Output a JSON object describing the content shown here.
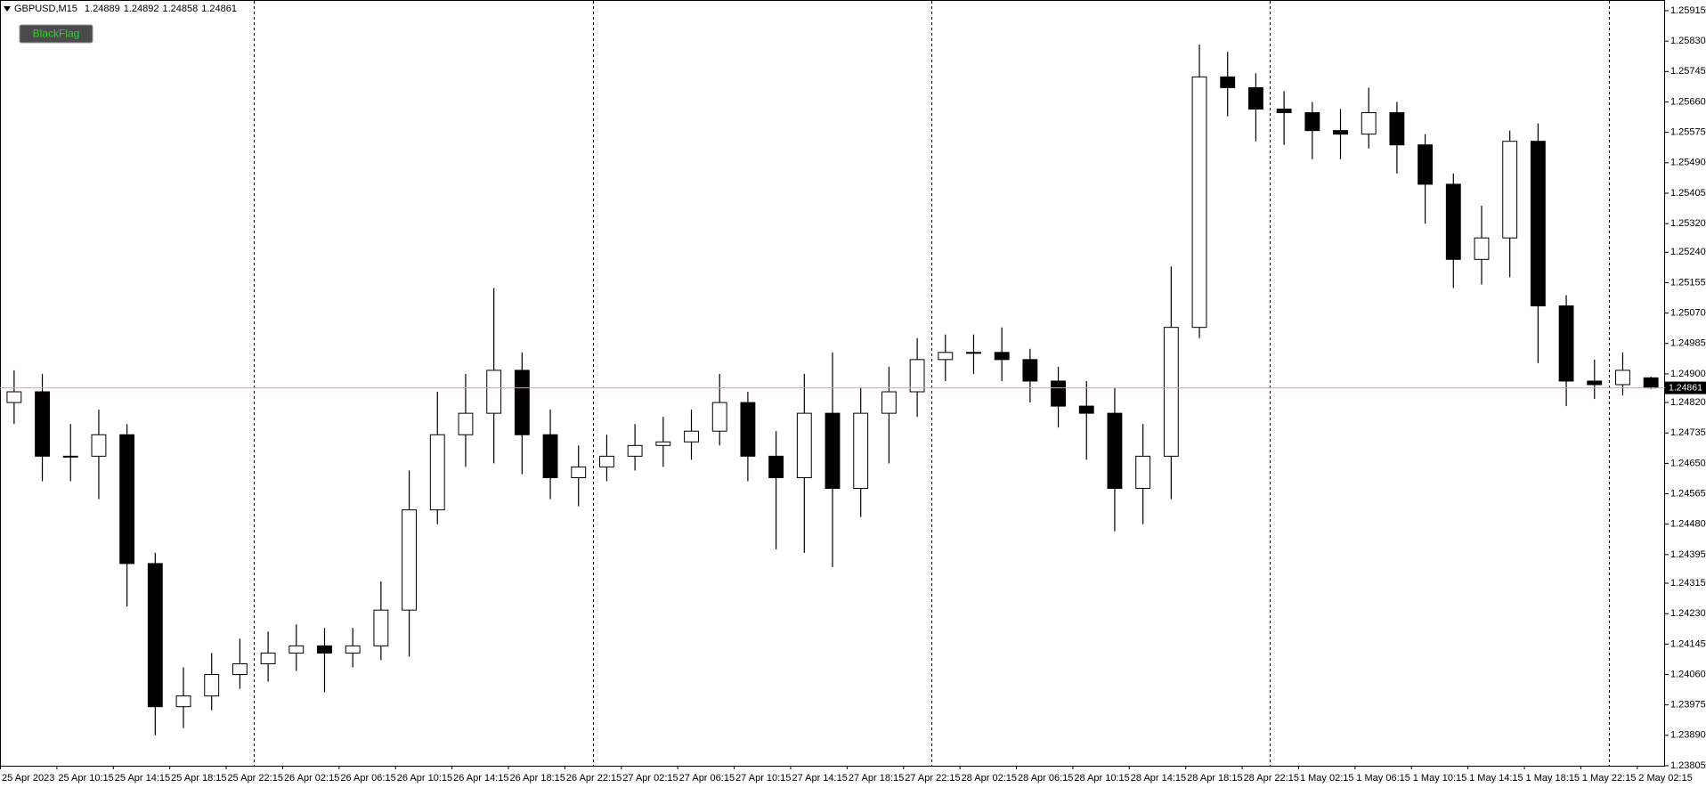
{
  "chart_data": {
    "type": "candlestick",
    "title": "GBPUSD,M15",
    "button": "BlackFlag",
    "categories": [
      "25 Apr 2023",
      null,
      "25 Apr 10:15",
      null,
      "25 Apr 14:15",
      null,
      "25 Apr 18:15",
      null,
      "25 Apr 22:15",
      null,
      "26 Apr 02:15",
      null,
      "26 Apr 06:15",
      null,
      "26 Apr 10:15",
      null,
      "26 Apr 14:15",
      null,
      "26 Apr 18:15",
      null,
      "26 Apr 22:15",
      null,
      "27 Apr 02:15",
      null,
      "27 Apr 06:15",
      null,
      "27 Apr 10:15",
      null,
      "27 Apr 14:15",
      null,
      "27 Apr 18:15",
      null,
      "27 Apr 22:15",
      null,
      "28 Apr 02:15",
      null,
      "28 Apr 06:15",
      null,
      "28 Apr 10:15",
      null,
      "28 Apr 14:15",
      null,
      "28 Apr 18:15",
      null,
      "28 Apr 22:15",
      null,
      "1 May 02:15",
      null,
      "1 May 06:15",
      null,
      "1 May 10:15",
      null,
      "1 May 14:15",
      null,
      "1 May 18:15",
      null,
      "1 May 22:15",
      null,
      "2 May 02:15"
    ],
    "open": [
      1.2482,
      1.2485,
      1.2467,
      1.2467,
      1.2473,
      1.2437,
      1.2397,
      1.24,
      1.2406,
      1.2409,
      1.2412,
      1.2414,
      1.2412,
      1.2414,
      1.2424,
      1.2452,
      1.2473,
      1.2479,
      1.2491,
      1.2473,
      1.2461,
      1.2464,
      1.2467,
      1.247,
      1.2471,
      1.2474,
      1.2482,
      1.2467,
      1.2461,
      1.2479,
      1.2458,
      1.2479,
      1.2485,
      1.2494,
      1.2496,
      1.2496,
      1.2494,
      1.2488,
      1.2481,
      1.2479,
      1.2458,
      1.2467,
      1.2503,
      1.2573,
      1.257,
      1.2564,
      1.2563,
      1.2558,
      1.2557,
      1.2563,
      1.2554,
      1.2543,
      1.2522,
      1.2528,
      1.2555,
      1.2509,
      1.2488,
      1.2487,
      1.24889
    ],
    "high": [
      1.2491,
      1.249,
      1.2476,
      1.248,
      1.2476,
      1.244,
      1.2408,
      1.2412,
      1.2416,
      1.2418,
      1.242,
      1.2419,
      1.2419,
      1.2432,
      1.2463,
      1.2485,
      1.249,
      1.2514,
      1.2496,
      1.248,
      1.247,
      1.2473,
      1.2476,
      1.2478,
      1.248,
      1.249,
      1.2485,
      1.2474,
      1.249,
      1.2496,
      1.2486,
      1.2492,
      1.25,
      1.2501,
      1.2501,
      1.2503,
      1.2497,
      1.2492,
      1.2488,
      1.2486,
      1.2476,
      1.252,
      1.2582,
      1.258,
      1.2574,
      1.2569,
      1.2566,
      1.2564,
      1.257,
      1.2566,
      1.2557,
      1.2546,
      1.2537,
      1.2558,
      1.256,
      1.2512,
      1.2494,
      1.2496,
      1.24892
    ],
    "low": [
      1.2476,
      1.246,
      1.246,
      1.2455,
      1.2425,
      1.2389,
      1.2391,
      1.2396,
      1.2402,
      1.2404,
      1.2407,
      1.2401,
      1.2408,
      1.241,
      1.2411,
      1.2448,
      1.2464,
      1.2465,
      1.2462,
      1.2455,
      1.2453,
      1.246,
      1.2463,
      1.2464,
      1.2466,
      1.247,
      1.246,
      1.2441,
      1.244,
      1.2436,
      1.245,
      1.2465,
      1.2478,
      1.2488,
      1.249,
      1.2488,
      1.2482,
      1.2475,
      1.2466,
      1.2446,
      1.2448,
      1.2455,
      1.25,
      1.2562,
      1.2555,
      1.2554,
      1.255,
      1.255,
      1.2553,
      1.2546,
      1.2532,
      1.2514,
      1.2515,
      1.2517,
      1.2493,
      1.2481,
      1.2483,
      1.2484,
      1.24858
    ],
    "close": [
      1.2485,
      1.2467,
      1.2467,
      1.2473,
      1.2437,
      1.2397,
      1.24,
      1.2406,
      1.2409,
      1.2412,
      1.2414,
      1.2412,
      1.2414,
      1.2424,
      1.2452,
      1.2473,
      1.2479,
      1.2491,
      1.2473,
      1.2461,
      1.2464,
      1.2467,
      1.247,
      1.2471,
      1.2474,
      1.2482,
      1.2467,
      1.2461,
      1.2479,
      1.2458,
      1.2479,
      1.2485,
      1.2494,
      1.2496,
      1.2496,
      1.2494,
      1.2488,
      1.2481,
      1.2479,
      1.2458,
      1.2467,
      1.2503,
      1.2573,
      1.257,
      1.2564,
      1.2563,
      1.2558,
      1.2557,
      1.2563,
      1.2554,
      1.2543,
      1.2522,
      1.2528,
      1.2555,
      1.2509,
      1.2488,
      1.2487,
      1.2491,
      1.24861
    ],
    "ylim": [
      1.23805,
      1.25915
    ],
    "yticks": [
      1.25915,
      {
        "value": 1.2583,
        "label": "1.25830"
      },
      1.25745,
      {
        "value": 1.2566,
        "label": "1.25660"
      },
      1.25575,
      {
        "value": 1.2549,
        "label": "1.25490"
      },
      1.25405,
      {
        "value": 1.2532,
        "label": "1.25320"
      },
      {
        "value": 1.2524,
        "label": "1.25240"
      },
      1.25155,
      {
        "value": 1.2507,
        "label": "1.25070"
      },
      1.24985,
      {
        "value": 1.249,
        "label": "1.24900"
      },
      {
        "value": 1.2482,
        "label": "1.24820"
      },
      1.24735,
      {
        "value": 1.2465,
        "label": "1.24650"
      },
      1.24565,
      {
        "value": 1.2448,
        "label": "1.24480"
      },
      1.24395,
      1.24315,
      {
        "value": 1.2423,
        "label": "1.24230"
      },
      1.24145,
      {
        "value": 1.2406,
        "label": "1.24060"
      },
      1.23975,
      {
        "value": 1.2389,
        "label": "1.23890"
      },
      1.23805
    ],
    "period_separators": true,
    "up_color": "#ffffff",
    "down_color": "#000000",
    "price_line_color": "#f4a460"
  }
}
